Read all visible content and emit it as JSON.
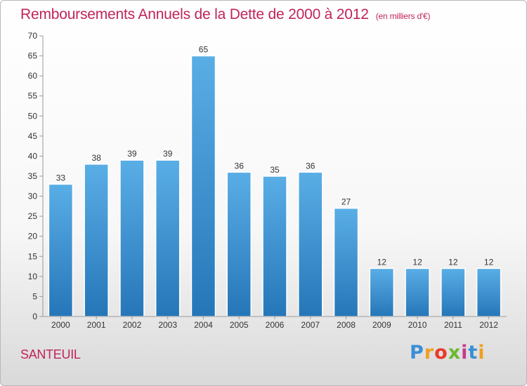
{
  "chart_data": {
    "type": "bar",
    "title": "Remboursements Annuels de la Dette de 2000 à 2012",
    "subtitle": "(en milliers d'€)",
    "xlabel": "",
    "ylabel": "",
    "categories": [
      "2000",
      "2001",
      "2002",
      "2003",
      "2004",
      "2005",
      "2006",
      "2007",
      "2008",
      "2009",
      "2010",
      "2011",
      "2012"
    ],
    "values": [
      33,
      38,
      39,
      39,
      65,
      36,
      35,
      36,
      27,
      12,
      12,
      12,
      12
    ],
    "ylim": [
      0,
      70
    ],
    "yticks": [
      0,
      5,
      10,
      15,
      20,
      25,
      30,
      35,
      40,
      45,
      50,
      55,
      60,
      65,
      70
    ],
    "grid": false,
    "bar_color_top": "#5aaee6",
    "bar_color_bottom": "#2576b8"
  },
  "location": "SANTEUIL",
  "logo": {
    "text": "Proxiti",
    "letters": [
      "P",
      "r",
      "o",
      "x",
      "i",
      "t",
      "i"
    ],
    "colors": [
      "#3a8fd6",
      "#f0a020",
      "#e83a2a",
      "#6cb82e",
      "#c43c8e",
      "#3a8fd6",
      "#f0a020"
    ]
  }
}
